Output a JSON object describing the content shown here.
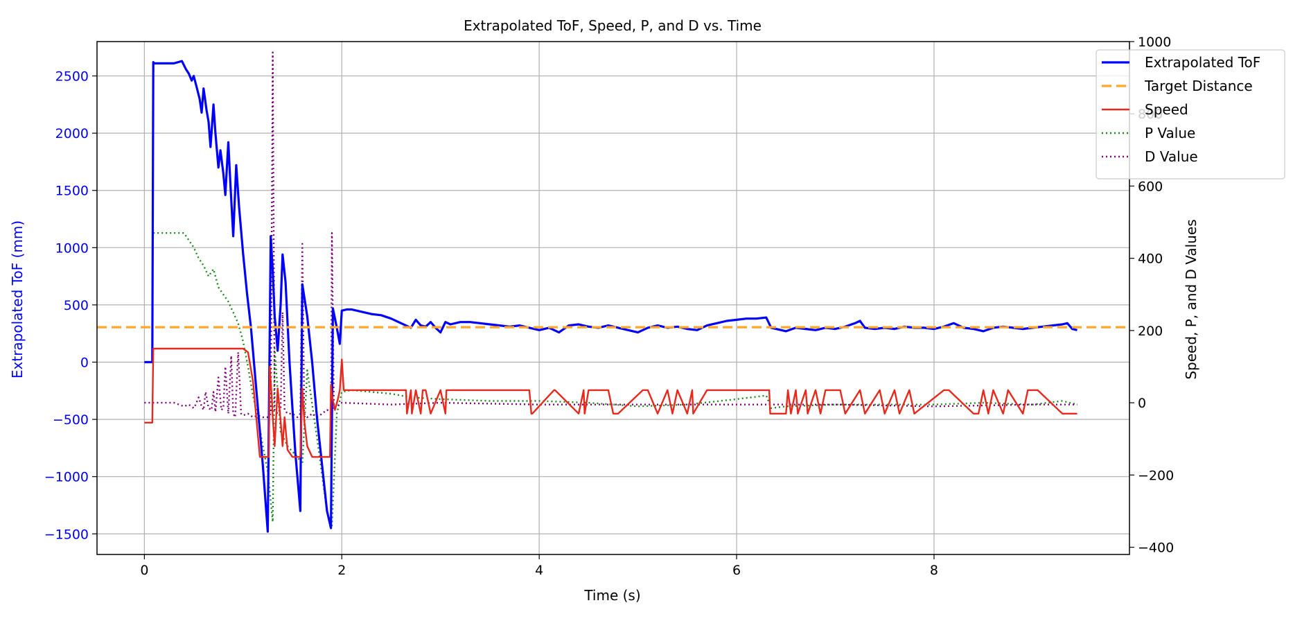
{
  "chart_data": {
    "type": "line",
    "title": "Extrapolated ToF, Speed, P, and D vs. Time",
    "xlabel": "Time (s)",
    "ylabel_left": "Extrapolated ToF (mm)",
    "ylabel_right": "Speed, P, and D Values",
    "xlim": [
      -0.48,
      9.98
    ],
    "ylim_left": [
      -1680,
      2800
    ],
    "ylim_right": [
      -420,
      1000
    ],
    "x_ticks": [
      0,
      2,
      4,
      6,
      8
    ],
    "y_ticks_left": [
      -1500,
      -1000,
      -500,
      0,
      500,
      1000,
      1500,
      2000,
      2500
    ],
    "y_ticks_right": [
      -400,
      -200,
      0,
      200,
      400,
      600,
      800,
      1000
    ],
    "grid": true,
    "legend_position": "top-right",
    "colors": {
      "tof": "#0000ff",
      "target": "#ffa62b",
      "speed": "#e8281c",
      "p": "#1a8a1a",
      "d": "#800080",
      "left_axis_text": "#0000ff"
    },
    "series": [
      {
        "name": "Extrapolated ToF",
        "axis": "left",
        "x": [
          0,
          0.08,
          0.09,
          0.1,
          0.2,
          0.3,
          0.38,
          0.42,
          0.45,
          0.48,
          0.5,
          0.53,
          0.56,
          0.58,
          0.6,
          0.63,
          0.65,
          0.67,
          0.7,
          0.72,
          0.75,
          0.77,
          0.8,
          0.82,
          0.85,
          0.87,
          0.9,
          0.93,
          0.96,
          1.0,
          1.04,
          1.08,
          1.12,
          1.16,
          1.2,
          1.25,
          1.28,
          1.3,
          1.32,
          1.35,
          1.38,
          1.4,
          1.43,
          1.47,
          1.5,
          1.53,
          1.56,
          1.58,
          1.6,
          1.65,
          1.7,
          1.75,
          1.8,
          1.85,
          1.89,
          1.91,
          1.95,
          1.98,
          2.0,
          2.05,
          2.1,
          2.2,
          2.3,
          2.4,
          2.5,
          2.6,
          2.7,
          2.75,
          2.8,
          2.85,
          2.9,
          2.95,
          3.0,
          3.05,
          3.1,
          3.2,
          3.3,
          3.4,
          3.5,
          3.6,
          3.7,
          3.8,
          3.9,
          4.0,
          4.1,
          4.2,
          4.3,
          4.4,
          4.5,
          4.6,
          4.7,
          4.8,
          4.9,
          5.0,
          5.1,
          5.2,
          5.3,
          5.4,
          5.5,
          5.6,
          5.7,
          5.8,
          5.9,
          6.0,
          6.1,
          6.2,
          6.3,
          6.35,
          6.4,
          6.5,
          6.6,
          6.7,
          6.8,
          6.9,
          7.0,
          7.1,
          7.2,
          7.25,
          7.3,
          7.4,
          7.5,
          7.6,
          7.7,
          7.8,
          7.9,
          8.0,
          8.1,
          8.2,
          8.3,
          8.4,
          8.5,
          8.6,
          8.7,
          8.8,
          8.9,
          9.0,
          9.1,
          9.2,
          9.3,
          9.35,
          9.4,
          9.45
        ],
        "y": [
          0,
          0,
          2620,
          2610,
          2610,
          2610,
          2630,
          2560,
          2520,
          2460,
          2500,
          2400,
          2300,
          2180,
          2390,
          2200,
          2100,
          1880,
          2250,
          2000,
          1700,
          1850,
          1650,
          1460,
          1920,
          1580,
          1100,
          1720,
          1350,
          950,
          600,
          300,
          -100,
          -500,
          -900,
          -1480,
          1100,
          800,
          400,
          100,
          500,
          940,
          700,
          0,
          -400,
          -800,
          -1100,
          -1300,
          680,
          400,
          0,
          -500,
          -900,
          -1300,
          -1450,
          470,
          300,
          160,
          450,
          460,
          460,
          440,
          420,
          410,
          380,
          340,
          300,
          370,
          320,
          310,
          350,
          300,
          260,
          350,
          330,
          350,
          350,
          340,
          330,
          320,
          310,
          320,
          300,
          280,
          300,
          260,
          320,
          330,
          310,
          300,
          320,
          300,
          280,
          260,
          300,
          320,
          300,
          310,
          290,
          280,
          320,
          340,
          360,
          370,
          380,
          380,
          390,
          300,
          290,
          270,
          300,
          290,
          280,
          300,
          290,
          310,
          340,
          360,
          300,
          290,
          300,
          290,
          310,
          300,
          300,
          290,
          310,
          340,
          300,
          290,
          270,
          300,
          310,
          300,
          290,
          300,
          310,
          320,
          330,
          340,
          290,
          280
        ]
      },
      {
        "name": "Target Distance",
        "axis": "left",
        "x": [
          -0.48,
          9.98
        ],
        "y": [
          305,
          305
        ]
      },
      {
        "name": "Speed",
        "axis": "right",
        "x": [
          0,
          0.08,
          0.09,
          0.1,
          0.3,
          0.5,
          0.7,
          0.9,
          0.95,
          1.0,
          1.05,
          1.1,
          1.17,
          1.18,
          1.2,
          1.26,
          1.27,
          1.28,
          1.29,
          1.3,
          1.32,
          1.35,
          1.38,
          1.4,
          1.42,
          1.45,
          1.5,
          1.55,
          1.58,
          1.6,
          1.62,
          1.65,
          1.7,
          1.75,
          1.8,
          1.85,
          1.88,
          1.89,
          1.9,
          1.93,
          1.96,
          1.98,
          2.0,
          2.02,
          2.05,
          2.1,
          2.5,
          2.65,
          2.66,
          2.7,
          2.71,
          2.75,
          2.8,
          2.82,
          2.85,
          2.9,
          3.0,
          3.05,
          3.06,
          3.1,
          3.9,
          3.92,
          3.93,
          4.15,
          4.16,
          4.4,
          4.45,
          4.46,
          4.5,
          4.7,
          4.75,
          4.8,
          5.05,
          5.1,
          5.2,
          5.3,
          5.35,
          5.4,
          5.5,
          5.55,
          5.56,
          5.7,
          5.71,
          6.33,
          6.34,
          6.5,
          6.52,
          6.55,
          6.6,
          6.62,
          6.7,
          6.72,
          6.8,
          6.85,
          6.9,
          7.05,
          7.1,
          7.25,
          7.3,
          7.45,
          7.5,
          7.6,
          7.65,
          7.75,
          7.8,
          8.1,
          8.15,
          8.4,
          8.45,
          8.5,
          8.55,
          8.6,
          8.7,
          8.75,
          8.9,
          8.95,
          9.0,
          9.05,
          9.3,
          9.35,
          9.45
        ],
        "y": [
          -55,
          -55,
          150,
          150,
          150,
          150,
          150,
          150,
          150,
          150,
          140,
          60,
          -150,
          -150,
          -150,
          -150,
          100,
          60,
          20,
          -40,
          -120,
          40,
          -50,
          -120,
          -40,
          -130,
          -150,
          -150,
          -150,
          40,
          -50,
          -120,
          -150,
          -150,
          -150,
          -150,
          -150,
          50,
          20,
          -20,
          10,
          35,
          120,
          35,
          35,
          35,
          35,
          35,
          -30,
          35,
          -30,
          35,
          -30,
          35,
          35,
          -30,
          35,
          -30,
          35,
          35,
          35,
          -30,
          -30,
          35,
          35,
          -30,
          35,
          -30,
          35,
          35,
          -30,
          -30,
          35,
          35,
          -30,
          35,
          -30,
          35,
          -30,
          35,
          -30,
          35,
          35,
          35,
          -30,
          -30,
          35,
          -30,
          35,
          -30,
          35,
          -30,
          35,
          -30,
          35,
          35,
          -30,
          35,
          -30,
          35,
          -30,
          35,
          -30,
          35,
          -30,
          35,
          35,
          -30,
          -30,
          35,
          -30,
          35,
          -30,
          35,
          -30,
          35,
          35,
          35,
          -30,
          -30,
          -30
        ]
      },
      {
        "name": "P Value",
        "axis": "right",
        "x": [
          0.09,
          0.1,
          0.2,
          0.3,
          0.4,
          0.45,
          0.5,
          0.55,
          0.6,
          0.65,
          0.7,
          0.75,
          0.8,
          0.85,
          0.9,
          0.95,
          1.0,
          1.05,
          1.1,
          1.15,
          1.2,
          1.25,
          1.3,
          1.32,
          1.38,
          1.45,
          1.55,
          1.6,
          1.65,
          1.75,
          1.85,
          1.9,
          1.95,
          2.0,
          2.1,
          2.3,
          2.5,
          2.7,
          3.0,
          3.5,
          4.0,
          4.5,
          5.0,
          5.5,
          6.0,
          6.3,
          6.35,
          6.5,
          7.0,
          7.5,
          8.0,
          8.5,
          9.0,
          9.3,
          9.45
        ],
        "y": [
          470,
          470,
          470,
          470,
          470,
          450,
          430,
          400,
          380,
          350,
          370,
          320,
          300,
          280,
          250,
          220,
          170,
          100,
          20,
          -40,
          -120,
          -190,
          -330,
          150,
          -80,
          -120,
          -150,
          -170,
          90,
          -100,
          -300,
          -340,
          -30,
          30,
          35,
          30,
          25,
          15,
          10,
          5,
          5,
          0,
          -10,
          -5,
          10,
          20,
          -15,
          -10,
          -5,
          -5,
          -5,
          0,
          -5,
          5,
          -5
        ]
      },
      {
        "name": "D Value",
        "axis": "right",
        "x": [
          0,
          0.2,
          0.3,
          0.35,
          0.4,
          0.45,
          0.5,
          0.52,
          0.55,
          0.58,
          0.6,
          0.62,
          0.65,
          0.68,
          0.7,
          0.72,
          0.75,
          0.78,
          0.8,
          0.82,
          0.85,
          0.88,
          0.9,
          0.92,
          0.95,
          0.98,
          1.0,
          1.05,
          1.1,
          1.15,
          1.2,
          1.25,
          1.28,
          1.3,
          1.32,
          1.35,
          1.38,
          1.4,
          1.42,
          1.45,
          1.5,
          1.55,
          1.58,
          1.6,
          1.62,
          1.65,
          1.7,
          1.75,
          1.8,
          1.85,
          1.89,
          1.9,
          1.92,
          1.95,
          2.0,
          2.5,
          3.0,
          4.0,
          5.0,
          6.0,
          7.0,
          8.0,
          9.0,
          9.45
        ],
        "y": [
          0,
          0,
          0,
          -5,
          -10,
          -5,
          -15,
          -5,
          15,
          -10,
          -20,
          30,
          -15,
          -20,
          30,
          -25,
          70,
          -20,
          -15,
          100,
          -30,
          130,
          -30,
          -40,
          140,
          -30,
          -35,
          -30,
          -40,
          -35,
          -40,
          -40,
          -30,
          970,
          -20,
          -30,
          -20,
          250,
          -20,
          -30,
          -30,
          -40,
          -30,
          440,
          -30,
          -40,
          -30,
          -40,
          -30,
          -20,
          -25,
          470,
          -20,
          -10,
          0,
          -5,
          0,
          -5,
          -5,
          -5,
          -5,
          -10,
          -5,
          -5
        ]
      }
    ],
    "legend": [
      {
        "label": "Extrapolated ToF",
        "style": "solid-thick",
        "color": "#0000ff"
      },
      {
        "label": "Target Distance",
        "style": "dashed",
        "color": "#ffa62b"
      },
      {
        "label": "Speed",
        "style": "solid",
        "color": "#e8281c"
      },
      {
        "label": "P Value",
        "style": "dotted",
        "color": "#1a8a1a"
      },
      {
        "label": "D Value",
        "style": "dotted",
        "color": "#800080"
      }
    ]
  }
}
